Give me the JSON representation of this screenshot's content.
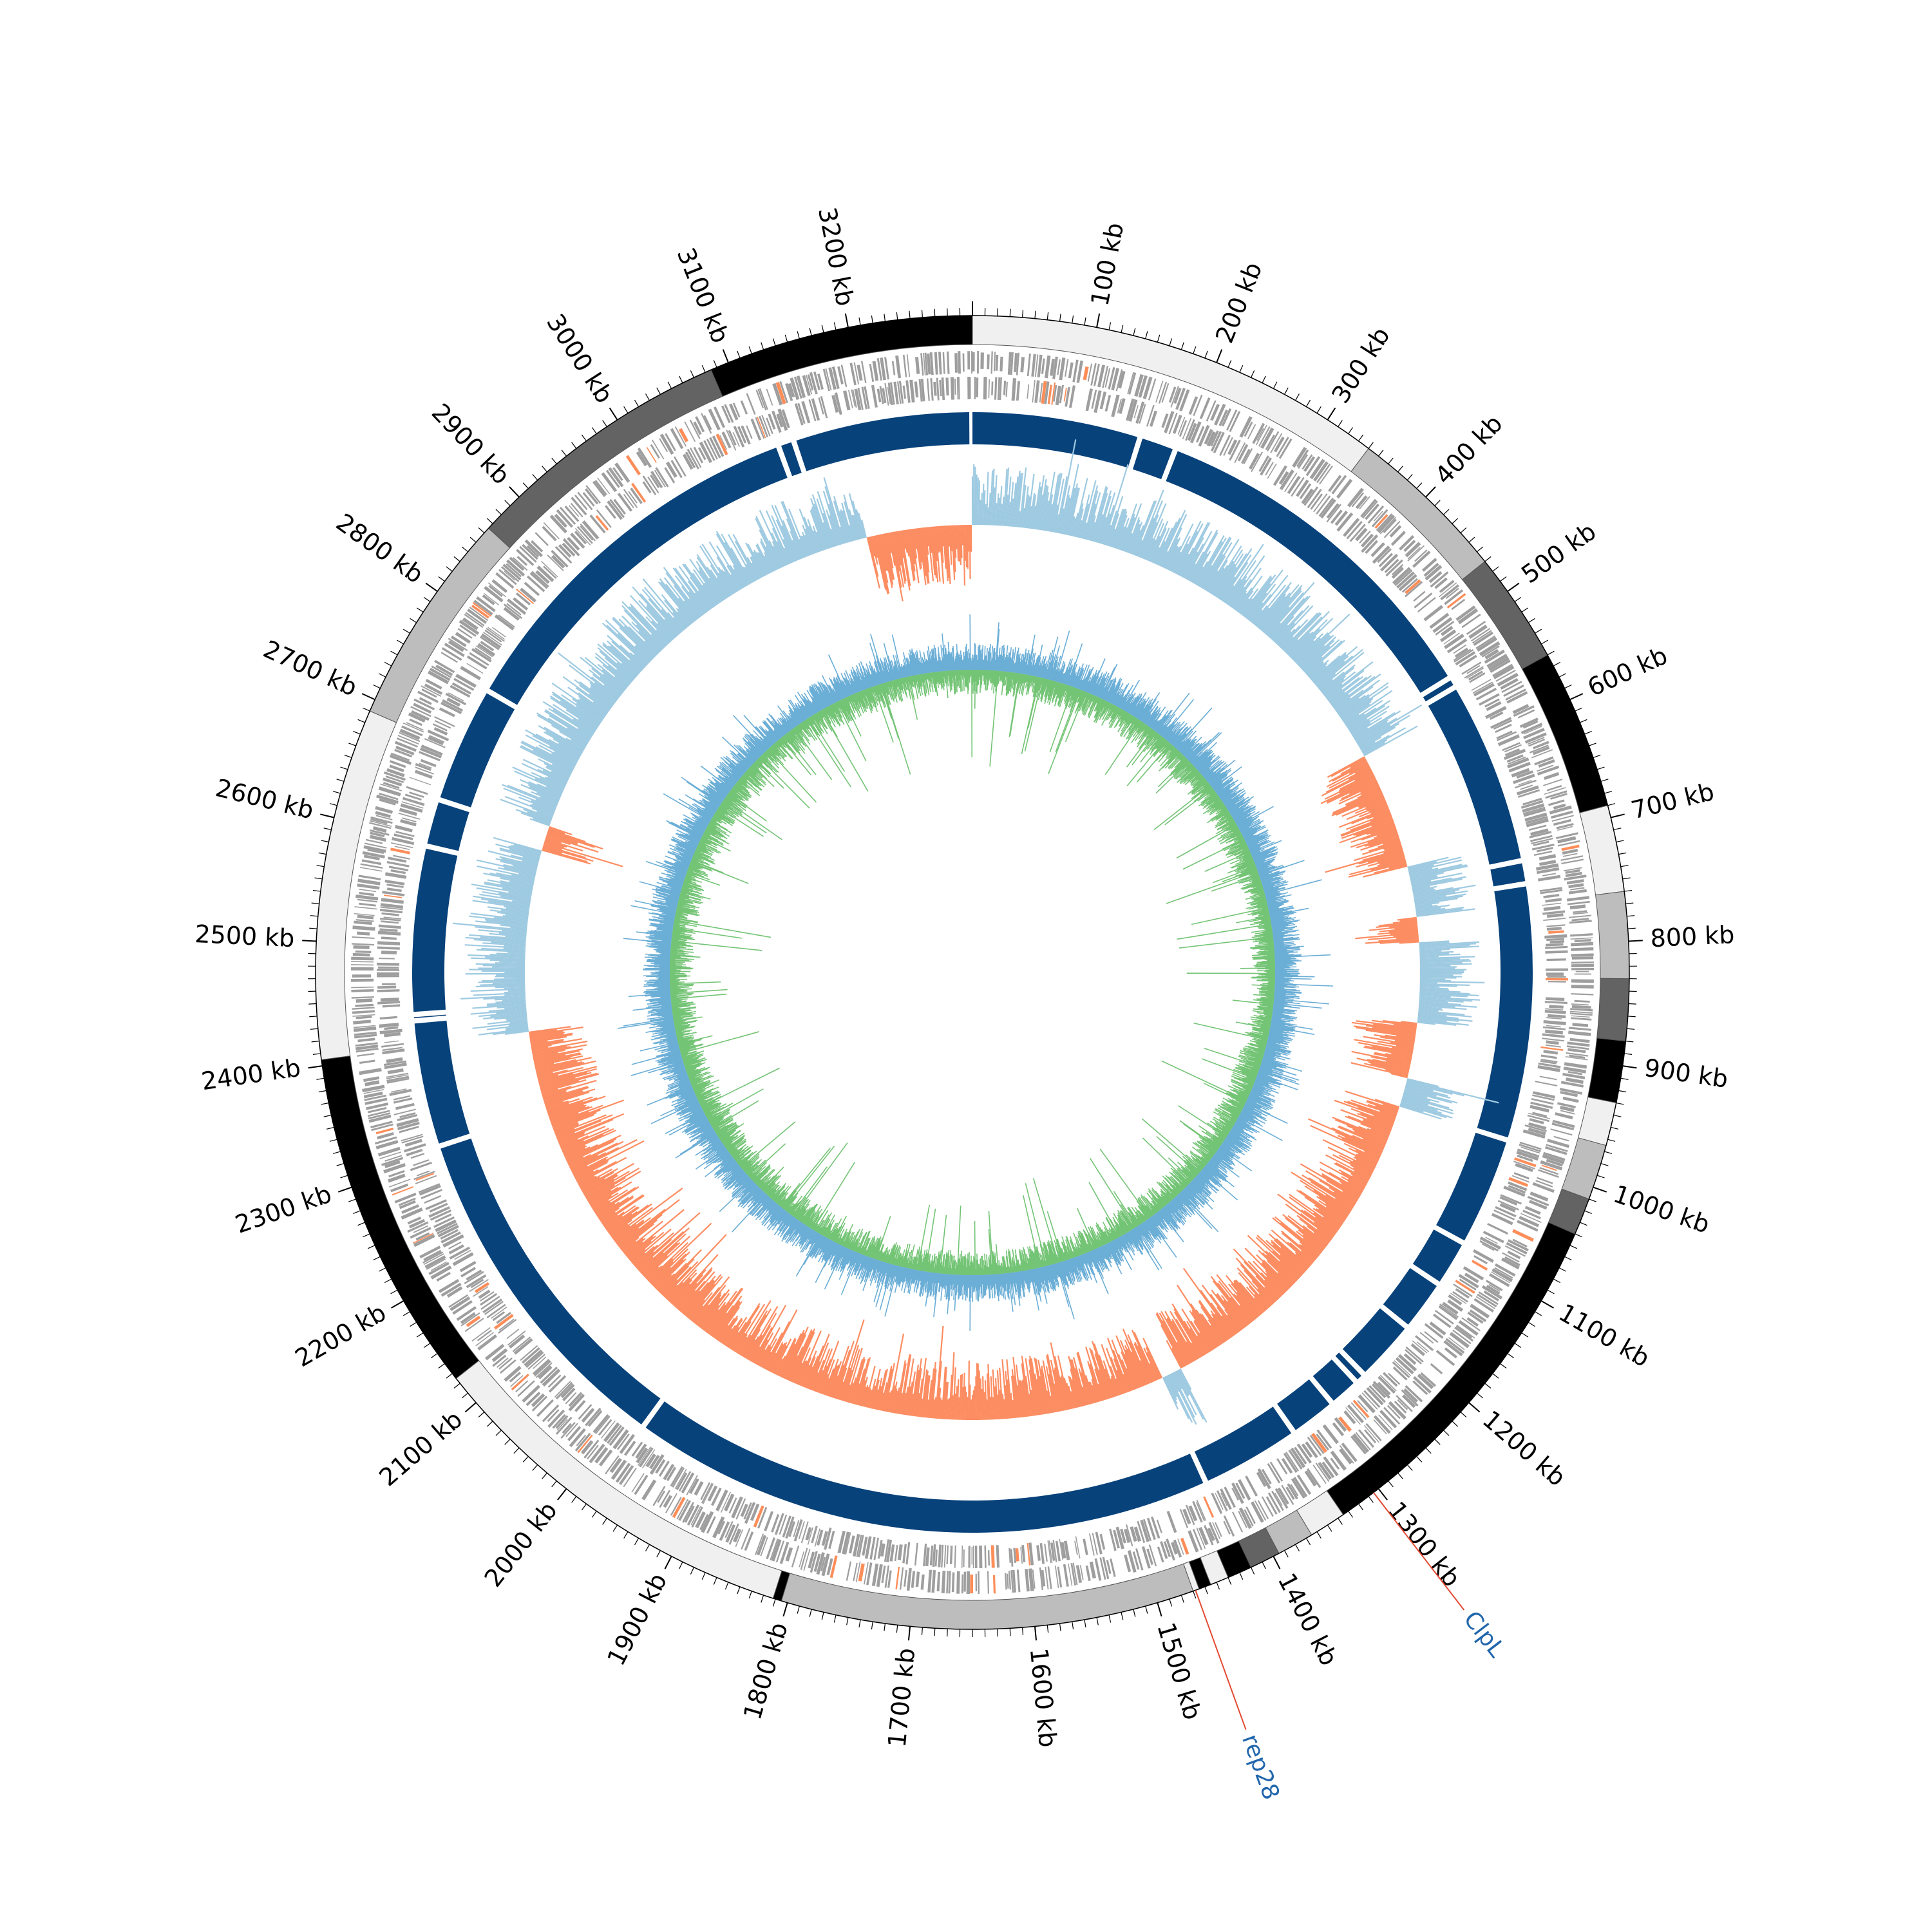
{
  "colors": {
    "background": "#ffffff",
    "contig_palette": [
      "#f0f0f0",
      "#bdbdbd",
      "#636363",
      "#000000"
    ],
    "cds": "#9e9e9e",
    "cds_highlight": "#fc8d59",
    "contig_band": "#08427b",
    "gc_above": "#9ecae1",
    "gc_below": "#fc8d62",
    "skew_pos": "#74c476",
    "skew_neg": "#6baed6",
    "gene_label": "#2166ac",
    "gene_line": "#e34a33",
    "axis": "#000000"
  },
  "chart_data": {
    "type": "circular-genome",
    "genome_length_kb": 3300,
    "tick_labels": [
      "3200 kb",
      "100 kb",
      "200 kb",
      "300 kb",
      "400 kb",
      "500 kb",
      "600 kb",
      "700 kb",
      "800 kb",
      "900 kb",
      "1000 kb",
      "1100 kb",
      "1200 kb",
      "1300 kb",
      "1400 kb",
      "1500 kb",
      "1600 kb",
      "1700 kb",
      "1800 kb",
      "1900 kb",
      "2000 kb",
      "2100 kb",
      "2200 kb",
      "2300 kb",
      "2400 kb",
      "2500 kb",
      "2600 kb",
      "2700 kb",
      "2800 kb",
      "2900 kb",
      "3000 kb",
      "3100 kb"
    ],
    "tick_positions_kb": [
      3200,
      100,
      200,
      300,
      400,
      500,
      600,
      700,
      800,
      900,
      1000,
      1100,
      1200,
      1300,
      1400,
      1500,
      1600,
      1700,
      1800,
      1900,
      2000,
      2100,
      2200,
      2300,
      2400,
      2500,
      2600,
      2700,
      2800,
      2900,
      3000,
      3100
    ],
    "contigs_kb": [
      {
        "start": 0,
        "end": 340,
        "shade": 0
      },
      {
        "start": 340,
        "end": 470,
        "shade": 1
      },
      {
        "start": 470,
        "end": 560,
        "shade": 2
      },
      {
        "start": 560,
        "end": 690,
        "shade": 3
      },
      {
        "start": 690,
        "end": 760,
        "shade": 0
      },
      {
        "start": 760,
        "end": 830,
        "shade": 1
      },
      {
        "start": 830,
        "end": 880,
        "shade": 2
      },
      {
        "start": 880,
        "end": 930,
        "shade": 3
      },
      {
        "start": 930,
        "end": 965,
        "shade": 0
      },
      {
        "start": 965,
        "end": 1010,
        "shade": 1
      },
      {
        "start": 1010,
        "end": 1040,
        "shade": 2
      },
      {
        "start": 1040,
        "end": 1335,
        "shade": 3
      },
      {
        "start": 1335,
        "end": 1365,
        "shade": 0
      },
      {
        "start": 1365,
        "end": 1395,
        "shade": 1
      },
      {
        "start": 1395,
        "end": 1420,
        "shade": 2
      },
      {
        "start": 1420,
        "end": 1440,
        "shade": 3
      },
      {
        "start": 1440,
        "end": 1455,
        "shade": 0
      },
      {
        "start": 1455,
        "end": 1465,
        "shade": 3
      },
      {
        "start": 1465,
        "end": 1470,
        "shade": 0
      },
      {
        "start": 1470,
        "end": 1805,
        "shade": 1
      },
      {
        "start": 1805,
        "end": 1812,
        "shade": 3
      },
      {
        "start": 1812,
        "end": 2125,
        "shade": 0
      },
      {
        "start": 2125,
        "end": 2405,
        "shade": 3
      },
      {
        "start": 2405,
        "end": 2690,
        "shade": 0
      },
      {
        "start": 2690,
        "end": 2865,
        "shade": 1
      },
      {
        "start": 2865,
        "end": 3085,
        "shade": 2
      },
      {
        "start": 3085,
        "end": 3300,
        "shade": 3
      }
    ],
    "band_gaps_kb": [
      3115,
      3130,
      160,
      195,
      535,
      545,
      720,
      742,
      985,
      1090,
      1135,
      1185,
      1245,
      1255,
      1285,
      1330,
      1425,
      1980,
      2310,
      2430,
      2436,
      2595,
      2640,
      2752
    ],
    "gc_below_regions_kb": [
      [
        3175,
        3300
      ],
      [
        560,
        700
      ],
      [
        760,
        790
      ],
      [
        885,
        950
      ],
      [
        985,
        1395
      ],
      [
        1420,
        2405
      ],
      [
        2620,
        2650
      ]
    ],
    "genes": [
      {
        "label": "ClpL",
        "position_kb": 1305
      },
      {
        "label": "rep28",
        "position_kb": 1468
      }
    ]
  }
}
